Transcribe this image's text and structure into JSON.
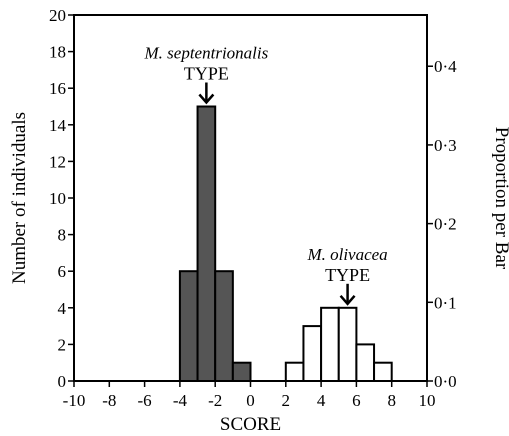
{
  "chart_data": {
    "type": "bar",
    "subtype": "histogram",
    "xlabel": "SCORE",
    "ylabel": "Number of individuals",
    "y2label": "Proportion per Bar",
    "xlim": [
      -10,
      10
    ],
    "ylim": [
      0,
      20
    ],
    "y2lim": [
      0,
      0.4651
    ],
    "x_ticks": [
      "-10",
      "-8",
      "-6",
      "-4",
      "-2",
      "0",
      "2",
      "4",
      "6",
      "8",
      "10"
    ],
    "y_ticks": [
      "0",
      "2",
      "4",
      "6",
      "8",
      "10",
      "12",
      "14",
      "16",
      "18",
      "20"
    ],
    "y2_ticks": [
      {
        "label": "0·0",
        "value": 0.0
      },
      {
        "label": "0·1",
        "value": 0.1
      },
      {
        "label": "0·2",
        "value": 0.2
      },
      {
        "label": "0·3",
        "value": 0.3
      },
      {
        "label": "0·4",
        "value": 0.4
      }
    ],
    "bin_width": 1,
    "series": [
      {
        "fill": "#555555",
        "bins": [
          {
            "x0": -4,
            "x1": -3,
            "count": 6
          },
          {
            "x0": -3,
            "x1": -2,
            "count": 15
          },
          {
            "x0": -2,
            "x1": -1,
            "count": 6
          },
          {
            "x0": -1,
            "x1": 0,
            "count": 1
          }
        ]
      },
      {
        "fill": "#ffffff",
        "bins": [
          {
            "x0": 2,
            "x1": 3,
            "count": 1
          },
          {
            "x0": 3,
            "x1": 4,
            "count": 3
          },
          {
            "x0": 4,
            "x1": 5,
            "count": 4
          },
          {
            "x0": 5,
            "x1": 6,
            "count": 4
          },
          {
            "x0": 6,
            "x1": 7,
            "count": 2
          },
          {
            "x0": 7,
            "x1": 8,
            "count": 1
          }
        ]
      }
    ],
    "annotations": [
      {
        "species": "M. septentrionalis",
        "type_label": "TYPE",
        "x": -2.5,
        "y": 15
      },
      {
        "species": "M. olivacea",
        "type_label": "TYPE",
        "x": 5.5,
        "y": 4
      }
    ]
  }
}
